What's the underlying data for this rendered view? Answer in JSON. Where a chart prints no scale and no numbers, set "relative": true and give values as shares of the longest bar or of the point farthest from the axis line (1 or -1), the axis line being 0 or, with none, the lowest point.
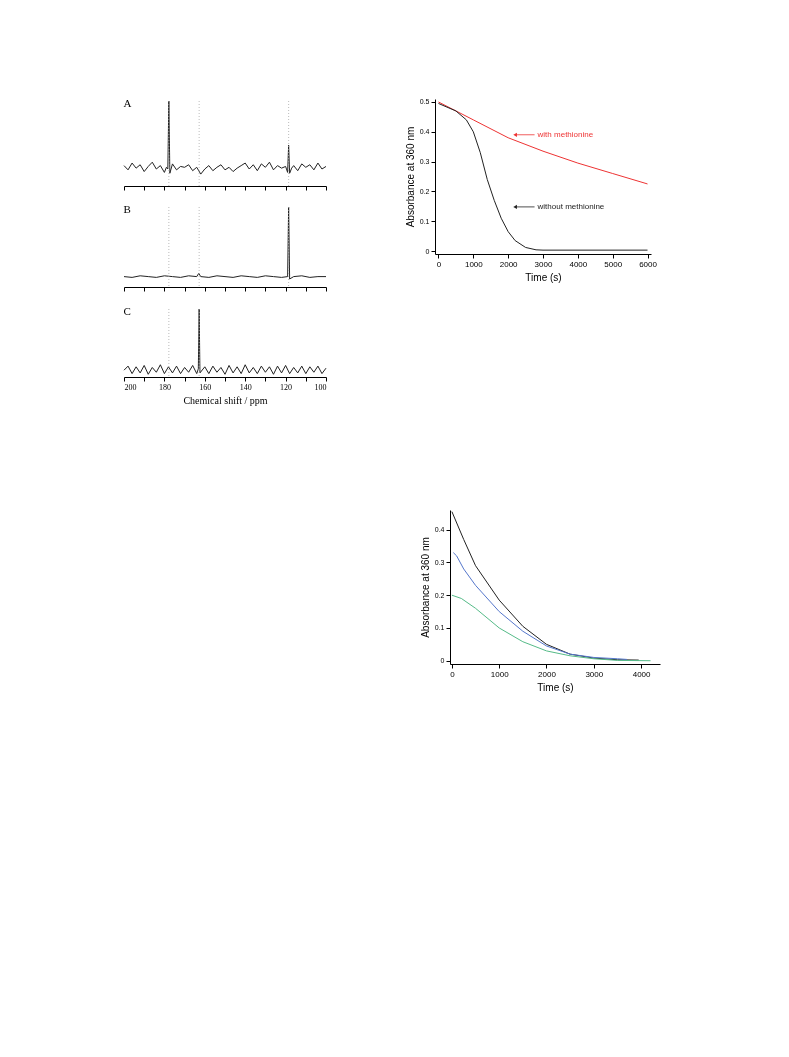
{
  "chart_data": [
    {
      "type": "line",
      "title": "A",
      "relative": true,
      "xlim": [
        200,
        100
      ],
      "tick_labels": false,
      "xticks": [
        {
          "value": 200,
          "label": null
        },
        {
          "value": 190,
          "label": null
        },
        {
          "value": 180,
          "label": null
        },
        {
          "value": 170,
          "label": null
        },
        {
          "value": 160,
          "label": null
        },
        {
          "value": 150,
          "label": null
        },
        {
          "value": 140,
          "label": null
        },
        {
          "value": 130,
          "label": null
        },
        {
          "value": 120,
          "label": null
        },
        {
          "value": 110,
          "label": null
        },
        {
          "value": 100,
          "label": null
        }
      ],
      "ref_lines": [
        {
          "axis": "x",
          "value": 177.8,
          "color": "#aaaaaa",
          "line_style": "dotted"
        },
        {
          "axis": "x",
          "value": 162.8,
          "color": "#aaaaaa",
          "line_style": "dotted"
        },
        {
          "axis": "x",
          "value": 118.5,
          "color": "#aaaaaa",
          "line_style": "dotted"
        }
      ],
      "series": [
        {
          "color": "#222222",
          "x": [
            200,
            198,
            196,
            194,
            192,
            190,
            188,
            186,
            184,
            182,
            180,
            179,
            178.3,
            177.8,
            177.3,
            176,
            174,
            172,
            170,
            168,
            166,
            164,
            162,
            160,
            158,
            156,
            154,
            152,
            150,
            148,
            146,
            144,
            142,
            140,
            138,
            136,
            134,
            132,
            130,
            128,
            126,
            124,
            122,
            120,
            119,
            118.5,
            118,
            117,
            116,
            114,
            112,
            110,
            108,
            106,
            104,
            102,
            100
          ],
          "values": [
            0.24,
            0.19,
            0.27,
            0.21,
            0.25,
            0.17,
            0.23,
            0.28,
            0.2,
            0.24,
            0.16,
            0.22,
            0.2,
            1,
            0.15,
            0.26,
            0.19,
            0.23,
            0.22,
            0.25,
            0.18,
            0.22,
            0.14,
            0.2,
            0.24,
            0.18,
            0.22,
            0.25,
            0.19,
            0.22,
            0.17,
            0.21,
            0.24,
            0.27,
            0.2,
            0.25,
            0.18,
            0.26,
            0.22,
            0.28,
            0.19,
            0.24,
            0.21,
            0.23,
            0.16,
            0.48,
            0.15,
            0.21,
            0.24,
            0.18,
            0.26,
            0.22,
            0.25,
            0.19,
            0.27,
            0.2,
            0.23
          ]
        }
      ]
    },
    {
      "type": "line",
      "title": "B",
      "relative": true,
      "xlim": [
        200,
        100
      ],
      "tick_labels": false,
      "xticks": [
        {
          "value": 200,
          "label": null
        },
        {
          "value": 190,
          "label": null
        },
        {
          "value": 180,
          "label": null
        },
        {
          "value": 170,
          "label": null
        },
        {
          "value": 160,
          "label": null
        },
        {
          "value": 150,
          "label": null
        },
        {
          "value": 140,
          "label": null
        },
        {
          "value": 130,
          "label": null
        },
        {
          "value": 120,
          "label": null
        },
        {
          "value": 110,
          "label": null
        },
        {
          "value": 100,
          "label": null
        }
      ],
      "ref_lines": [
        {
          "axis": "x",
          "value": 177.8,
          "color": "#aaaaaa",
          "line_style": "dotted"
        },
        {
          "axis": "x",
          "value": 162.8,
          "color": "#aaaaaa",
          "line_style": "dotted"
        },
        {
          "axis": "x",
          "value": 118.5,
          "color": "#aaaaaa",
          "line_style": "dotted"
        }
      ],
      "series": [
        {
          "color": "#222222",
          "x": [
            200,
            196,
            192,
            188,
            184,
            180,
            176,
            172,
            168,
            164,
            163,
            162,
            158,
            154,
            150,
            146,
            142,
            138,
            134,
            130,
            126,
            122,
            119,
            118.5,
            118,
            116,
            112,
            108,
            104,
            100
          ],
          "values": [
            0.13,
            0.12,
            0.14,
            0.13,
            0.12,
            0.14,
            0.13,
            0.12,
            0.14,
            0.13,
            0.17,
            0.13,
            0.12,
            0.14,
            0.13,
            0.12,
            0.14,
            0.13,
            0.12,
            0.14,
            0.13,
            0.12,
            0.13,
            1,
            0.1,
            0.13,
            0.14,
            0.12,
            0.13,
            0.13
          ]
        }
      ]
    },
    {
      "type": "line",
      "title": "C",
      "relative": true,
      "xlim": [
        200,
        100
      ],
      "tick_labels": "x",
      "xlabel": "Chemical shift / ppm",
      "xticks": [
        200,
        {
          "value": 190,
          "label": null
        },
        180,
        {
          "value": 170,
          "label": null
        },
        160,
        {
          "value": 150,
          "label": null
        },
        140,
        {
          "value": 130,
          "label": null
        },
        120,
        {
          "value": 110,
          "label": null
        },
        100
      ],
      "ref_lines": [
        {
          "axis": "x",
          "value": 177.8,
          "color": "#aaaaaa",
          "line_style": "dotted"
        },
        {
          "axis": "x",
          "value": 162.8,
          "color": "#aaaaaa",
          "line_style": "dotted"
        }
      ],
      "series": [
        {
          "color": "#222222",
          "x": [
            200,
            198,
            196,
            194,
            192,
            190,
            188,
            186,
            184,
            182,
            180,
            178,
            176,
            174,
            172,
            170,
            168,
            166,
            164,
            163.2,
            162.8,
            162.4,
            160,
            158,
            156,
            154,
            152,
            150,
            148,
            146,
            144,
            142,
            140,
            138,
            136,
            134,
            132,
            130,
            128,
            126,
            124,
            122,
            120,
            118,
            116,
            114,
            112,
            110,
            108,
            106,
            104,
            102,
            100
          ],
          "values": [
            0.1,
            0.16,
            0.05,
            0.15,
            0.06,
            0.17,
            0.04,
            0.14,
            0.07,
            0.18,
            0.05,
            0.15,
            0.06,
            0.16,
            0.05,
            0.14,
            0.07,
            0.17,
            0.05,
            0.12,
            1,
            0.06,
            0.15,
            0.05,
            0.16,
            0.07,
            0.14,
            0.04,
            0.17,
            0.06,
            0.15,
            0.05,
            0.18,
            0.06,
            0.14,
            0.05,
            0.16,
            0.07,
            0.15,
            0.04,
            0.16,
            0.06,
            0.17,
            0.05,
            0.14,
            0.06,
            0.16,
            0.05,
            0.15,
            0.07,
            0.16,
            0.05,
            0.13
          ]
        }
      ]
    },
    {
      "type": "line",
      "xlabel": "Time (s)",
      "ylabel": "Absorbance at 360 nm",
      "xlim": [
        -100,
        6100
      ],
      "ylim": [
        -0.01,
        0.51
      ],
      "xticks": [
        0,
        1000,
        2000,
        3000,
        4000,
        5000,
        6000
      ],
      "yticks": [
        0,
        0.1,
        0.2,
        0.3,
        0.4,
        0.5
      ],
      "annotations": [
        {
          "text": "with methionine",
          "x": 2200,
          "y": 0.39
        },
        {
          "text": "without methionine",
          "x": 2200,
          "y": 0.148
        }
      ],
      "series": [
        {
          "color": "#ee3333",
          "x": [
            0,
            1000,
            2000,
            3000,
            4000,
            5000,
            6000
          ],
          "values": [
            0.5,
            0.44,
            0.38,
            0.335,
            0.295,
            0.26,
            0.225
          ]
        },
        {
          "color": "#222222",
          "x": [
            0,
            500,
            800,
            1000,
            1200,
            1400,
            1600,
            1800,
            2000,
            2200,
            2500,
            2800,
            3000,
            6000
          ],
          "values": [
            0.495,
            0.47,
            0.44,
            0.4,
            0.33,
            0.24,
            0.17,
            0.11,
            0.065,
            0.035,
            0.012,
            0.004,
            0.003,
            0.003
          ]
        }
      ]
    },
    {
      "type": "line",
      "xlabel": "Time (s)",
      "ylabel": "Absorbance at 360 nm",
      "xlim": [
        -40,
        4400
      ],
      "ylim": [
        -0.01,
        0.46
      ],
      "xticks": [
        0,
        1000,
        2000,
        3000,
        4000
      ],
      "yticks": [
        0,
        0.1,
        0.2,
        0.3,
        0.4
      ],
      "series": [
        {
          "color": "#222222",
          "x": [
            0,
            250,
            500,
            1000,
            1500,
            2000,
            2500,
            3000,
            3500,
            3950
          ],
          "values": [
            0.455,
            0.37,
            0.29,
            0.185,
            0.105,
            0.05,
            0.02,
            0.008,
            0.003,
            0.002
          ]
        },
        {
          "color": "#5577cc",
          "x": [
            30,
            100,
            250,
            500,
            1000,
            1500,
            2000,
            2500,
            3000,
            3500,
            3700
          ],
          "values": [
            0.33,
            0.32,
            0.28,
            0.23,
            0.15,
            0.09,
            0.045,
            0.02,
            0.01,
            0.006,
            0.004
          ]
        },
        {
          "color": "#55bb88",
          "x": [
            0,
            200,
            500,
            1000,
            1500,
            2000,
            2500,
            3000,
            3500,
            4200
          ],
          "values": [
            0.2,
            0.19,
            0.16,
            0.1,
            0.058,
            0.03,
            0.015,
            0.006,
            0.001,
            0
          ]
        }
      ]
    }
  ]
}
